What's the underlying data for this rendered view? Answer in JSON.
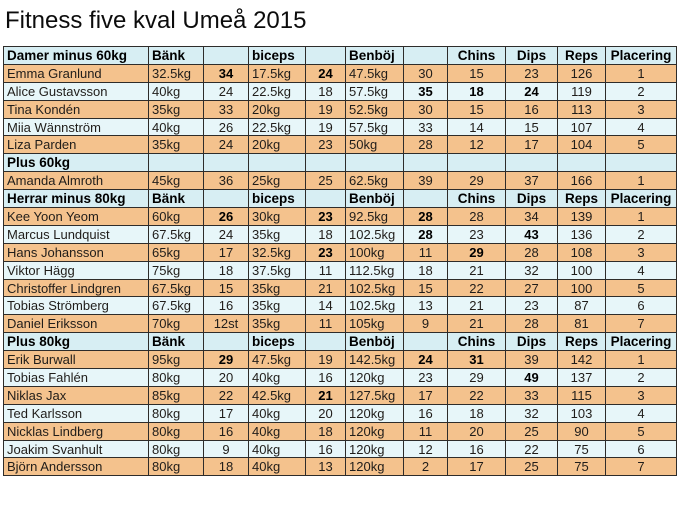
{
  "title": "Fitness five kval Umeå 2015",
  "table": {
    "rows": [
      {
        "type": "header",
        "cells": [
          "Damer minus 60kg",
          "Bänk",
          "",
          "biceps",
          "",
          "Benböj",
          "",
          "Chins",
          "Dips",
          "Reps",
          "Placering"
        ]
      },
      {
        "type": "data",
        "variant": "orange",
        "cells": [
          "Emma Granlund",
          "32.5kg",
          "34",
          "17.5kg",
          "24",
          "47.5kg",
          "30",
          "15",
          "23",
          "126",
          "1"
        ],
        "bold": [
          2,
          4
        ]
      },
      {
        "type": "data",
        "variant": "blue",
        "cells": [
          "Alice Gustavsson",
          "40kg",
          "24",
          "22.5kg",
          "18",
          "57.5kg",
          "35",
          "18",
          "24",
          "119",
          "2"
        ],
        "bold": [
          6,
          7,
          8
        ]
      },
      {
        "type": "data",
        "variant": "orange",
        "cells": [
          "Tina Kondén",
          "35kg",
          "33",
          "20kg",
          "19",
          "52.5kg",
          "30",
          "15",
          "16",
          "113",
          "3"
        ],
        "bold": []
      },
      {
        "type": "data",
        "variant": "blue",
        "cells": [
          "Miia Wännström",
          "40kg",
          "26",
          "22.5kg",
          "19",
          "57.5kg",
          "33",
          "14",
          "15",
          "107",
          "4"
        ],
        "bold": []
      },
      {
        "type": "data",
        "variant": "orange",
        "cells": [
          "Liza Parden",
          "35kg",
          "24",
          "20kg",
          "23",
          "50kg",
          "28",
          "12",
          "17",
          "104",
          "5"
        ],
        "bold": []
      },
      {
        "type": "header",
        "cells": [
          "Plus 60kg",
          "",
          "",
          "",
          "",
          "",
          "",
          "",
          "",
          "",
          ""
        ]
      },
      {
        "type": "data",
        "variant": "orange",
        "cells": [
          "Amanda Almroth",
          "45kg",
          "36",
          "25kg",
          "25",
          "62.5kg",
          "39",
          "29",
          "37",
          "166",
          "1"
        ],
        "bold": []
      },
      {
        "type": "header",
        "cells": [
          "Herrar minus 80kg",
          "Bänk",
          "",
          "biceps",
          "",
          "Benböj",
          "",
          "Chins",
          "Dips",
          "Reps",
          "Placering"
        ]
      },
      {
        "type": "data",
        "variant": "orange",
        "cells": [
          "Kee Yoon Yeom",
          "60kg",
          "26",
          "30kg",
          "23",
          "92.5kg",
          "28",
          "28",
          "34",
          "139",
          "1"
        ],
        "bold": [
          2,
          4,
          6
        ]
      },
      {
        "type": "data",
        "variant": "blue",
        "cells": [
          "Marcus Lundquist",
          "67.5kg",
          "24",
          "35kg",
          "18",
          "102.5kg",
          "28",
          "23",
          "43",
          "136",
          "2"
        ],
        "bold": [
          6,
          8
        ]
      },
      {
        "type": "data",
        "variant": "orange",
        "cells": [
          "Hans Johansson",
          "65kg",
          "17",
          "32.5kg",
          "23",
          "100kg",
          "11",
          "29",
          "28",
          "108",
          "3"
        ],
        "bold": [
          4,
          7
        ]
      },
      {
        "type": "data",
        "variant": "blue",
        "cells": [
          "Viktor Hägg",
          "75kg",
          "18",
          "37.5kg",
          "11",
          "112.5kg",
          "18",
          "21",
          "32",
          "100",
          "4"
        ],
        "bold": []
      },
      {
        "type": "data",
        "variant": "orange",
        "cells": [
          "Christoffer Lindgren",
          "67.5kg",
          "15",
          "35kg",
          "21",
          "102.5kg",
          "15",
          "22",
          "27",
          "100",
          "5"
        ],
        "bold": []
      },
      {
        "type": "data",
        "variant": "blue",
        "cells": [
          "Tobias Strömberg",
          "67.5kg",
          "16",
          "35kg",
          "14",
          "102.5kg",
          "13",
          "21",
          "23",
          "87",
          "6"
        ],
        "bold": []
      },
      {
        "type": "data",
        "variant": "orange",
        "cells": [
          "Daniel Eriksson",
          "70kg",
          "12st",
          "35kg",
          "11",
          "105kg",
          "9",
          "21",
          "28",
          "81",
          "7"
        ],
        "bold": []
      },
      {
        "type": "header",
        "cells": [
          "Plus 80kg",
          "Bänk",
          "",
          "biceps",
          "",
          "Benböj",
          "",
          "Chins",
          "Dips",
          "Reps",
          "Placering"
        ]
      },
      {
        "type": "data",
        "variant": "orange",
        "cells": [
          "Erik Burwall",
          "95kg",
          "29",
          "47.5kg",
          "19",
          "142.5kg",
          "24",
          "31",
          "39",
          "142",
          "1"
        ],
        "bold": [
          2,
          6,
          7
        ]
      },
      {
        "type": "data",
        "variant": "blue",
        "cells": [
          "Tobias Fahlén",
          "80kg",
          "20",
          "40kg",
          "16",
          "120kg",
          "23",
          "29",
          "49",
          "137",
          "2"
        ],
        "bold": [
          8
        ]
      },
      {
        "type": "data",
        "variant": "orange",
        "cells": [
          "Niklas Jax",
          "85kg",
          "22",
          "42.5kg",
          "21",
          "127.5kg",
          "17",
          "22",
          "33",
          "115",
          "3"
        ],
        "bold": [
          4
        ]
      },
      {
        "type": "data",
        "variant": "blue",
        "cells": [
          "Ted Karlsson",
          "80kg",
          "17",
          "40kg",
          "20",
          "120kg",
          "16",
          "18",
          "32",
          "103",
          "4"
        ],
        "bold": []
      },
      {
        "type": "data",
        "variant": "orange",
        "cells": [
          "Nicklas Lindberg",
          "80kg",
          "16",
          "40kg",
          "18",
          "120kg",
          "11",
          "20",
          "25",
          "90",
          "5"
        ],
        "bold": []
      },
      {
        "type": "data",
        "variant": "blue",
        "cells": [
          "Joakim Svanhult",
          "80kg",
          "9",
          "40kg",
          "16",
          "120kg",
          "12",
          "16",
          "22",
          "75",
          "6"
        ],
        "bold": []
      },
      {
        "type": "data",
        "variant": "orange",
        "cells": [
          "Björn Andersson",
          "80kg",
          "18",
          "40kg",
          "13",
          "120kg",
          "2",
          "17",
          "25",
          "75",
          "7"
        ],
        "bold": []
      }
    ]
  }
}
